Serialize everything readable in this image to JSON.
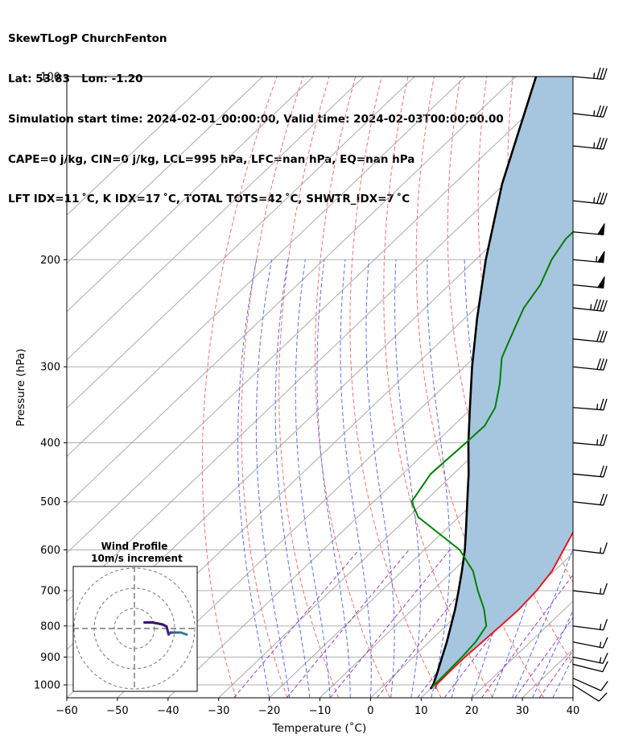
{
  "header": {
    "line1": "SkewTLogP ChurchFenton",
    "line2": "Lat: 53.83   Lon: -1.20",
    "line3": "Simulation start time: 2024-02-01_00:00:00, Valid time: 2024-02-03T00:00:00.00",
    "line4": "CAPE=0 j/kg, CIN=0 j/kg, LCL=995 hPa, LFC=nan hPa, EQ=nan hPa",
    "line5": "LFT IDX=11 ˚C, K IDX=17 ˚C, TOTAL TOTS=42 ˚C, SHWTR_IDX=7 ˚C"
  },
  "chart_data": [
    {
      "type": "line",
      "subtype": "skew-t log-p",
      "xlabel": "Temperature (˚C)",
      "ylabel": "Pressure (hPa)",
      "xlim": [
        -60,
        40
      ],
      "ylim": [
        1050,
        100
      ],
      "yscale": "log",
      "x_ticks": [
        -60,
        -50,
        -40,
        -30,
        -20,
        -10,
        0,
        10,
        20,
        30,
        40
      ],
      "x_tick_labels": [
        "−60",
        "−50",
        "−40",
        "−30",
        "−20",
        "−10",
        "0",
        "10",
        "20",
        "30",
        "40"
      ],
      "y_ticks": [
        1000,
        900,
        800,
        700,
        600,
        500,
        400,
        300,
        200,
        100
      ],
      "y_tick_labels": [
        "1000",
        "900",
        "800",
        "700",
        "600",
        "500",
        "400",
        "300",
        "200",
        "100"
      ],
      "grid": true,
      "series": [
        {
          "kind": "temperature",
          "color": "#e31a1c",
          "points": [
            [
              1015,
              11.0
            ],
            [
              1000,
              10.3
            ],
            [
              950,
              10.2
            ],
            [
              900,
              10.2
            ],
            [
              850,
              10.5
            ],
            [
              800,
              10.8
            ],
            [
              750,
              11.0
            ],
            [
              700,
              10.6
            ],
            [
              650,
              9.6
            ],
            [
              600,
              7.5
            ],
            [
              550,
              5.2
            ],
            [
              500,
              3.0
            ],
            [
              450,
              0.0
            ],
            [
              400,
              -4.0
            ],
            [
              350,
              -8.5
            ],
            [
              300,
              -14.5
            ],
            [
              250,
              -20.5
            ],
            [
              220,
              -25.5
            ],
            [
              200,
              -30.0
            ],
            [
              185,
              -32.5
            ],
            [
              170,
              -32.3
            ],
            [
              160,
              -31.5
            ],
            [
              150,
              -30.3
            ],
            [
              140,
              -29.5
            ],
            [
              130,
              -28.0
            ],
            [
              120,
              -25.5
            ],
            [
              110,
              -21.5
            ],
            [
              100,
              -17.5
            ]
          ]
        },
        {
          "kind": "dewpoint",
          "color": "#008000",
          "points": [
            [
              1010,
              10.0
            ],
            [
              1000,
              9.9
            ],
            [
              950,
              9.8
            ],
            [
              900,
              9.6
            ],
            [
              850,
              9.2
            ],
            [
              800,
              8.0
            ],
            [
              750,
              4.0
            ],
            [
              700,
              -1.0
            ],
            [
              650,
              -6.0
            ],
            [
              600,
              -13.0
            ],
            [
              530,
              -28.0
            ],
            [
              500,
              -32.5
            ],
            [
              450,
              -34.5
            ],
            [
              400,
              -34.0
            ],
            [
              375,
              -33.8
            ],
            [
              350,
              -35.5
            ],
            [
              320,
              -39.5
            ],
            [
              290,
              -44.5
            ],
            [
              260,
              -48.0
            ],
            [
              240,
              -50.5
            ],
            [
              220,
              -52.0
            ],
            [
              200,
              -55.0
            ],
            [
              185,
              -56.5
            ],
            [
              165,
              -56.5
            ],
            [
              145,
              -56.0
            ],
            [
              130,
              -55.8
            ],
            [
              115,
              -55.5
            ],
            [
              100,
              -50.5
            ]
          ]
        },
        {
          "kind": "parcel",
          "color": "#000000",
          "points": [
            [
              1015,
              10.0
            ],
            [
              1000,
              9.7
            ],
            [
              950,
              7.8
            ],
            [
              900,
              5.7
            ],
            [
              850,
              3.5
            ],
            [
              800,
              1.0
            ],
            [
              750,
              -1.7
            ],
            [
              700,
              -4.8
            ],
            [
              650,
              -8.2
            ],
            [
              600,
              -12.0
            ],
            [
              550,
              -16.5
            ],
            [
              500,
              -21.5
            ],
            [
              450,
              -27.0
            ],
            [
              400,
              -33.5
            ],
            [
              350,
              -40.5
            ],
            [
              300,
              -48.5
            ],
            [
              250,
              -57.5
            ],
            [
              200,
              -68.0
            ],
            [
              150,
              -80.5
            ],
            [
              100,
              -96.0
            ]
          ]
        }
      ],
      "shaded_region": {
        "between": [
          "parcel",
          "temperature"
        ],
        "color": "#a6c6e0"
      },
      "reference_lines": {
        "isotherms": {
          "color": "#aaaaaa",
          "step": 10
        },
        "dry_adiabats": {
          "color": "#f07070",
          "style": "dashed"
        },
        "moist_adiabats": {
          "color": "#5a6ef0",
          "style": "dashed"
        },
        "mixing_ratio": {
          "color": "#9a3fc4",
          "style": "dashed"
        }
      },
      "wind_barbs": [
        {
          "p": 1000,
          "u": -8,
          "v": -5
        },
        {
          "p": 975,
          "u": -9,
          "v": -4
        },
        {
          "p": 925,
          "u": -12,
          "v": -3
        },
        {
          "p": 900,
          "u": -14,
          "v": -3
        },
        {
          "p": 850,
          "u": -15,
          "v": -3
        },
        {
          "p": 800,
          "u": -15,
          "v": -2
        },
        {
          "p": 700,
          "u": -17,
          "v": -2
        },
        {
          "p": 600,
          "u": -17,
          "v": -2
        },
        {
          "p": 500,
          "u": -18,
          "v": -2
        },
        {
          "p": 450,
          "u": -20,
          "v": -2
        },
        {
          "p": 400,
          "u": -23,
          "v": -2
        },
        {
          "p": 350,
          "u": -25,
          "v": -2
        },
        {
          "p": 300,
          "u": -28,
          "v": -3
        },
        {
          "p": 270,
          "u": -30,
          "v": -3
        },
        {
          "p": 240,
          "u": -45,
          "v": -5
        },
        {
          "p": 220,
          "u": -50,
          "v": -5
        },
        {
          "p": 200,
          "u": -55,
          "v": -5
        },
        {
          "p": 180,
          "u": -52,
          "v": -5
        },
        {
          "p": 160,
          "u": -37,
          "v": -4
        },
        {
          "p": 130,
          "u": -37,
          "v": -4
        },
        {
          "p": 115,
          "u": -34,
          "v": -4
        },
        {
          "p": 100,
          "u": -34,
          "v": -3
        }
      ]
    },
    {
      "type": "line",
      "subtype": "hodograph",
      "title": "Wind Profile",
      "subtitle": "10m/s increment",
      "rings": [
        10,
        20,
        30
      ],
      "points": [
        [
          5,
          3
        ],
        [
          9,
          3
        ],
        [
          14,
          2
        ],
        [
          16,
          1
        ],
        [
          17,
          -3
        ],
        [
          18,
          -2
        ],
        [
          20,
          -2
        ],
        [
          23,
          -2
        ],
        [
          26,
          -3
        ]
      ]
    }
  ]
}
